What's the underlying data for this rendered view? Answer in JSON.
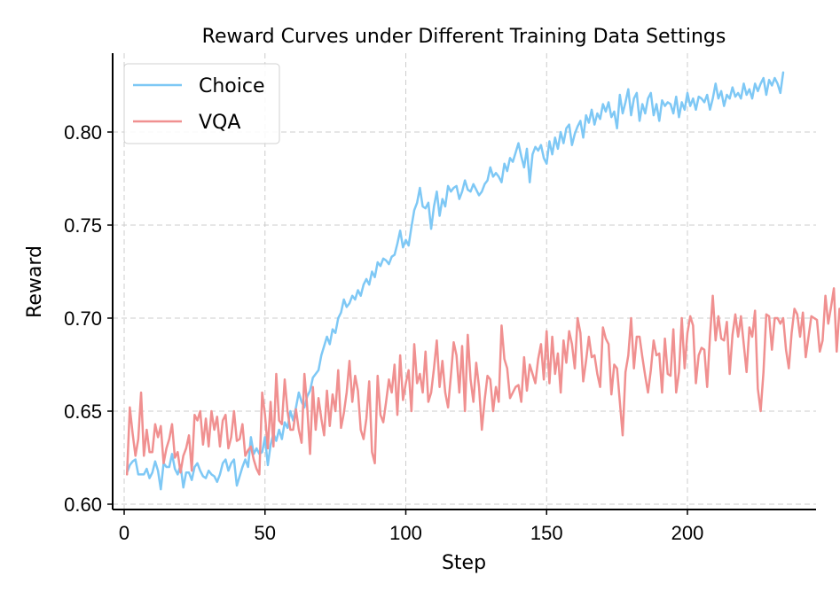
{
  "chart_data": {
    "type": "line",
    "title": "Reward Curves under Different Training Data Settings",
    "xlabel": "Step",
    "ylabel": "Reward",
    "xlim": [
      -3,
      243
    ],
    "ylim": [
      0.598,
      0.842
    ],
    "xticks": [
      0,
      50,
      100,
      150,
      200
    ],
    "xtick_labels": [
      "0",
      "50",
      "100",
      "150",
      "200"
    ],
    "yticks": [
      0.6,
      0.65,
      0.7,
      0.75,
      0.8
    ],
    "ytick_labels": [
      "0.60",
      "0.65",
      "0.70",
      "0.75",
      "0.80"
    ],
    "grid": true,
    "legend": "upper-left",
    "series": [
      {
        "name": "Choice",
        "color": "#7ec8f5",
        "x_start": 1,
        "values": [
          0.617,
          0.621,
          0.623,
          0.624,
          0.616,
          0.616,
          0.616,
          0.619,
          0.614,
          0.617,
          0.623,
          0.618,
          0.608,
          0.622,
          0.62,
          0.62,
          0.627,
          0.619,
          0.616,
          0.621,
          0.609,
          0.617,
          0.617,
          0.613,
          0.62,
          0.622,
          0.618,
          0.615,
          0.614,
          0.618,
          0.616,
          0.615,
          0.612,
          0.616,
          0.622,
          0.624,
          0.618,
          0.622,
          0.624,
          0.61,
          0.615,
          0.62,
          0.624,
          0.62,
          0.636,
          0.627,
          0.63,
          0.627,
          0.628,
          0.636,
          0.621,
          0.632,
          0.638,
          0.634,
          0.64,
          0.635,
          0.644,
          0.641,
          0.65,
          0.645,
          0.652,
          0.66,
          0.655,
          0.652,
          0.658,
          0.661,
          0.668,
          0.67,
          0.672,
          0.68,
          0.685,
          0.69,
          0.686,
          0.694,
          0.692,
          0.7,
          0.703,
          0.71,
          0.706,
          0.708,
          0.712,
          0.71,
          0.715,
          0.712,
          0.718,
          0.721,
          0.718,
          0.725,
          0.722,
          0.73,
          0.728,
          0.732,
          0.731,
          0.729,
          0.733,
          0.734,
          0.74,
          0.747,
          0.738,
          0.742,
          0.739,
          0.749,
          0.758,
          0.762,
          0.77,
          0.76,
          0.759,
          0.762,
          0.748,
          0.76,
          0.768,
          0.755,
          0.764,
          0.76,
          0.771,
          0.768,
          0.77,
          0.771,
          0.764,
          0.768,
          0.774,
          0.769,
          0.768,
          0.772,
          0.769,
          0.766,
          0.768,
          0.772,
          0.774,
          0.781,
          0.776,
          0.778,
          0.776,
          0.773,
          0.783,
          0.779,
          0.786,
          0.784,
          0.789,
          0.794,
          0.787,
          0.781,
          0.791,
          0.773,
          0.788,
          0.792,
          0.79,
          0.793,
          0.786,
          0.783,
          0.795,
          0.788,
          0.797,
          0.791,
          0.8,
          0.794,
          0.802,
          0.804,
          0.793,
          0.799,
          0.803,
          0.806,
          0.797,
          0.809,
          0.805,
          0.812,
          0.804,
          0.81,
          0.807,
          0.815,
          0.811,
          0.816,
          0.808,
          0.811,
          0.802,
          0.82,
          0.81,
          0.816,
          0.823,
          0.809,
          0.818,
          0.821,
          0.806,
          0.815,
          0.81,
          0.818,
          0.821,
          0.809,
          0.815,
          0.806,
          0.817,
          0.814,
          0.816,
          0.815,
          0.81,
          0.819,
          0.808,
          0.816,
          0.812,
          0.821,
          0.814,
          0.818,
          0.812,
          0.819,
          0.818,
          0.816,
          0.82,
          0.812,
          0.818,
          0.826,
          0.818,
          0.822,
          0.814,
          0.82,
          0.818,
          0.824,
          0.819,
          0.821,
          0.818,
          0.826,
          0.82,
          0.823,
          0.818,
          0.826,
          0.822,
          0.826,
          0.829,
          0.82,
          0.828,
          0.825,
          0.829,
          0.826,
          0.821,
          0.832
        ],
        "values_note": "approximate readings"
      },
      {
        "name": "VQA",
        "color": "#f09090",
        "x_start": 1,
        "values": [
          0.616,
          0.652,
          0.638,
          0.626,
          0.635,
          0.66,
          0.626,
          0.64,
          0.628,
          0.628,
          0.643,
          0.636,
          0.642,
          0.622,
          0.63,
          0.635,
          0.643,
          0.625,
          0.628,
          0.617,
          0.626,
          0.63,
          0.637,
          0.618,
          0.648,
          0.645,
          0.65,
          0.632,
          0.646,
          0.631,
          0.65,
          0.64,
          0.647,
          0.631,
          0.645,
          0.648,
          0.63,
          0.636,
          0.65,
          0.634,
          0.635,
          0.643,
          0.626,
          0.629,
          0.631,
          0.624,
          0.619,
          0.616,
          0.66,
          0.648,
          0.63,
          0.655,
          0.631,
          0.67,
          0.645,
          0.643,
          0.667,
          0.65,
          0.64,
          0.64,
          0.651,
          0.64,
          0.633,
          0.67,
          0.652,
          0.627,
          0.663,
          0.64,
          0.657,
          0.646,
          0.637,
          0.661,
          0.642,
          0.659,
          0.65,
          0.672,
          0.641,
          0.649,
          0.66,
          0.677,
          0.655,
          0.669,
          0.661,
          0.64,
          0.635,
          0.646,
          0.666,
          0.628,
          0.622,
          0.669,
          0.648,
          0.644,
          0.655,
          0.667,
          0.66,
          0.675,
          0.648,
          0.68,
          0.656,
          0.665,
          0.672,
          0.65,
          0.686,
          0.665,
          0.67,
          0.66,
          0.682,
          0.655,
          0.66,
          0.673,
          0.688,
          0.663,
          0.677,
          0.66,
          0.652,
          0.669,
          0.687,
          0.68,
          0.66,
          0.685,
          0.65,
          0.691,
          0.667,
          0.655,
          0.676,
          0.663,
          0.64,
          0.656,
          0.669,
          0.667,
          0.65,
          0.663,
          0.655,
          0.696,
          0.678,
          0.673,
          0.657,
          0.66,
          0.663,
          0.664,
          0.655,
          0.679,
          0.661,
          0.675,
          0.67,
          0.665,
          0.678,
          0.686,
          0.667,
          0.693,
          0.665,
          0.69,
          0.67,
          0.681,
          0.66,
          0.688,
          0.676,
          0.693,
          0.686,
          0.673,
          0.7,
          0.692,
          0.666,
          0.677,
          0.69,
          0.679,
          0.68,
          0.67,
          0.663,
          0.695,
          0.689,
          0.686,
          0.659,
          0.675,
          0.673,
          0.655,
          0.637,
          0.671,
          0.68,
          0.7,
          0.673,
          0.69,
          0.69,
          0.679,
          0.669,
          0.66,
          0.672,
          0.688,
          0.68,
          0.681,
          0.66,
          0.689,
          0.67,
          0.669,
          0.694,
          0.66,
          0.671,
          0.7,
          0.673,
          0.692,
          0.701,
          0.696,
          0.665,
          0.68,
          0.684,
          0.683,
          0.663,
          0.69,
          0.712,
          0.688,
          0.701,
          0.689,
          0.688,
          0.698,
          0.67,
          0.691,
          0.702,
          0.69,
          0.701,
          0.686,
          0.671,
          0.695,
          0.69,
          0.704,
          0.662,
          0.65,
          0.671,
          0.702,
          0.701,
          0.683,
          0.7,
          0.7,
          0.697,
          0.7,
          0.683,
          0.673,
          0.692,
          0.705,
          0.702,
          0.69,
          0.703,
          0.679,
          0.69,
          0.701,
          0.7,
          0.699,
          0.682,
          0.688,
          0.712,
          0.697,
          0.706,
          0.716,
          0.682,
          0.705
        ],
        "values_note": "approximate readings"
      }
    ]
  }
}
